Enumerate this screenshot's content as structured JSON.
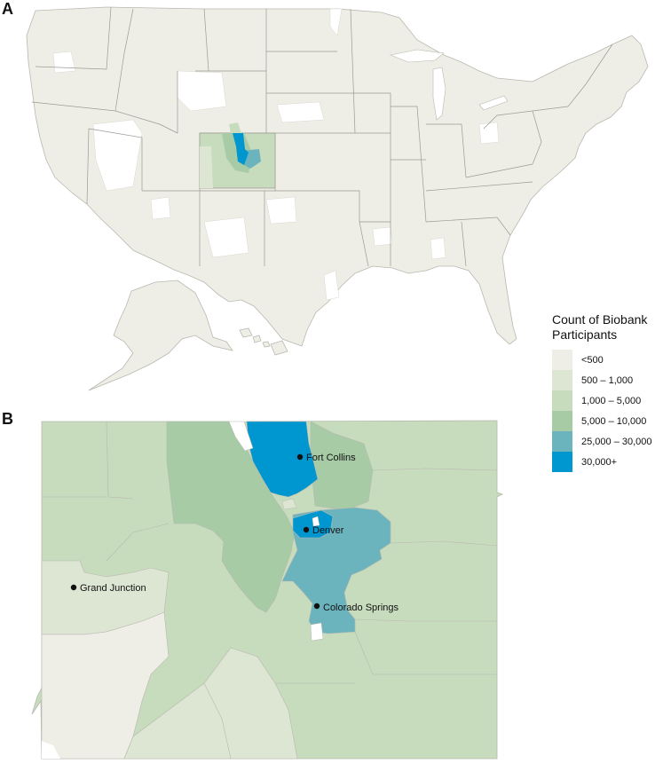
{
  "panels": {
    "a": "A",
    "b": "B"
  },
  "legend": {
    "title_line1": "Count of Biobank",
    "title_line2": "Participants",
    "bins": [
      {
        "label": "<500",
        "color": "#eeeee7"
      },
      {
        "label": "500 – 1,000",
        "color": "#dde5d3"
      },
      {
        "label": "1,000 – 5,000",
        "color": "#c7dbbd"
      },
      {
        "label": "5,000 – 10,000",
        "color": "#a6cba5"
      },
      {
        "label": "25,000 – 30,000",
        "color": "#6cb4bd"
      },
      {
        "label": "30,000+",
        "color": "#0096cf"
      }
    ]
  },
  "cities": [
    {
      "name": "Fort Collins"
    },
    {
      "name": "Denver"
    },
    {
      "name": "Grand Junction"
    },
    {
      "name": "Colorado Springs"
    }
  ],
  "colors": {
    "no_data": "#ffffff",
    "border": "#b8b8b0"
  }
}
